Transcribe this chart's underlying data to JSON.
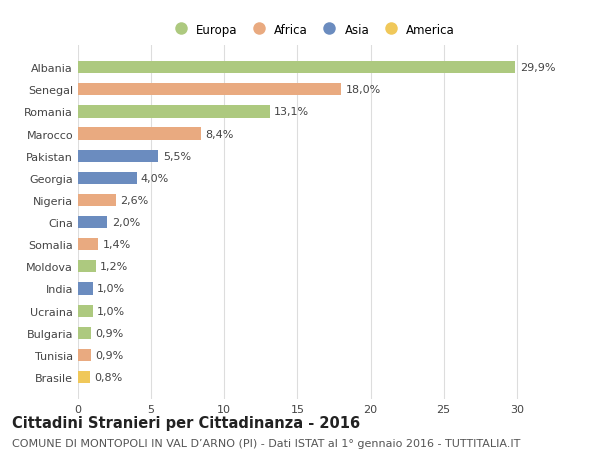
{
  "countries": [
    "Albania",
    "Senegal",
    "Romania",
    "Marocco",
    "Pakistan",
    "Georgia",
    "Nigeria",
    "Cina",
    "Somalia",
    "Moldova",
    "India",
    "Ucraina",
    "Bulgaria",
    "Tunisia",
    "Brasile"
  ],
  "values": [
    29.9,
    18.0,
    13.1,
    8.4,
    5.5,
    4.0,
    2.6,
    2.0,
    1.4,
    1.2,
    1.0,
    1.0,
    0.9,
    0.9,
    0.8
  ],
  "labels": [
    "29,9%",
    "18,0%",
    "13,1%",
    "8,4%",
    "5,5%",
    "4,0%",
    "2,6%",
    "2,0%",
    "1,4%",
    "1,2%",
    "1,0%",
    "1,0%",
    "0,9%",
    "0,9%",
    "0,8%"
  ],
  "continents": [
    "Europa",
    "Africa",
    "Europa",
    "Africa",
    "Asia",
    "Asia",
    "Africa",
    "Asia",
    "Africa",
    "Europa",
    "Asia",
    "Europa",
    "Europa",
    "Africa",
    "America"
  ],
  "colors": {
    "Europa": "#adc97f",
    "Africa": "#e9aa80",
    "Asia": "#6b8cbf",
    "America": "#f0c85a"
  },
  "xlim": [
    0,
    32
  ],
  "xticks": [
    0,
    5,
    10,
    15,
    20,
    25,
    30
  ],
  "background_color": "#ffffff",
  "grid_color": "#dddddd",
  "title": "Cittadini Stranieri per Cittadinanza - 2016",
  "subtitle": "COMUNE DI MONTOPOLI IN VAL D’ARNO (PI) - Dati ISTAT al 1° gennaio 2016 - TUTTITALIA.IT",
  "title_fontsize": 10.5,
  "subtitle_fontsize": 8,
  "bar_height": 0.55,
  "label_fontsize": 8,
  "ytick_fontsize": 8,
  "xtick_fontsize": 8,
  "legend_fontsize": 8.5,
  "legend_labels": [
    "Europa",
    "Africa",
    "Asia",
    "America"
  ]
}
